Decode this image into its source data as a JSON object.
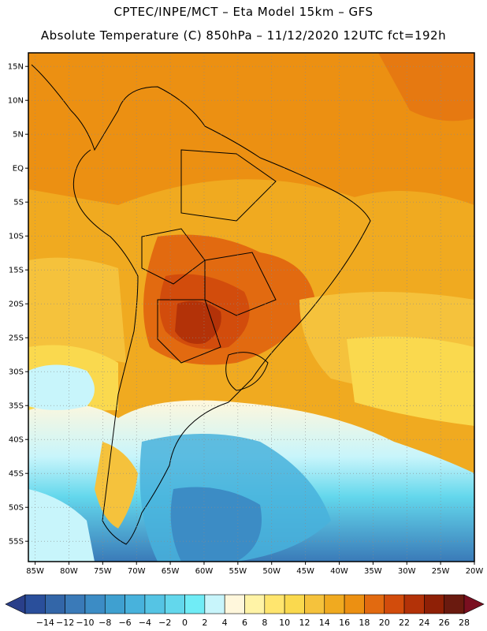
{
  "header": {
    "line1": "CPTEC/INPE/MCT –  Eta Model 15km – GFS",
    "line2": "Absolute Temperature (C) 850hPa – 11/12/2020 12UTC fct=192h"
  },
  "map": {
    "variable": "Absolute Temperature",
    "units": "C",
    "level": "850hPa",
    "lat_ticks": [
      "15N",
      "10N",
      "5N",
      "EQ",
      "5S",
      "10S",
      "15S",
      "20S",
      "25S",
      "30S",
      "35S",
      "40S",
      "45S",
      "50S",
      "55S"
    ],
    "lon_ticks": [
      "85W",
      "80W",
      "75W",
      "70W",
      "65W",
      "60W",
      "55W",
      "50W",
      "45W",
      "40W",
      "35W",
      "30W",
      "25W",
      "20W"
    ],
    "extent": {
      "lon_min": -86,
      "lon_max": -20,
      "lat_min": -58,
      "lat_max": 17
    },
    "gridlines": true,
    "gridline_style": "dotted",
    "land_outline_color": "#000000"
  },
  "colorbar": {
    "labels": [
      "-14",
      "-12",
      "-10",
      "-8",
      "-6",
      "-4",
      "-2",
      "0",
      "2",
      "4",
      "6",
      "8",
      "10",
      "12",
      "14",
      "16",
      "18",
      "20",
      "22",
      "24",
      "26",
      "28"
    ],
    "colors": [
      "#2a4f9b",
      "#3366a8",
      "#3a7ab8",
      "#3c8cc5",
      "#3fa0d0",
      "#48b2dc",
      "#55c4e4",
      "#63d7ec",
      "#70ecf6",
      "#c8f5fb",
      "#fff7dc",
      "#fff3a6",
      "#ffe56e",
      "#fad94e",
      "#f5c23c",
      "#f0aa20",
      "#ec9012",
      "#e26a10",
      "#d24c0c",
      "#b33208",
      "#8f2006",
      "#6a1a0f"
    ],
    "under_color": "#2a3f8a",
    "over_color": "#7a0f20",
    "extend": "both"
  }
}
